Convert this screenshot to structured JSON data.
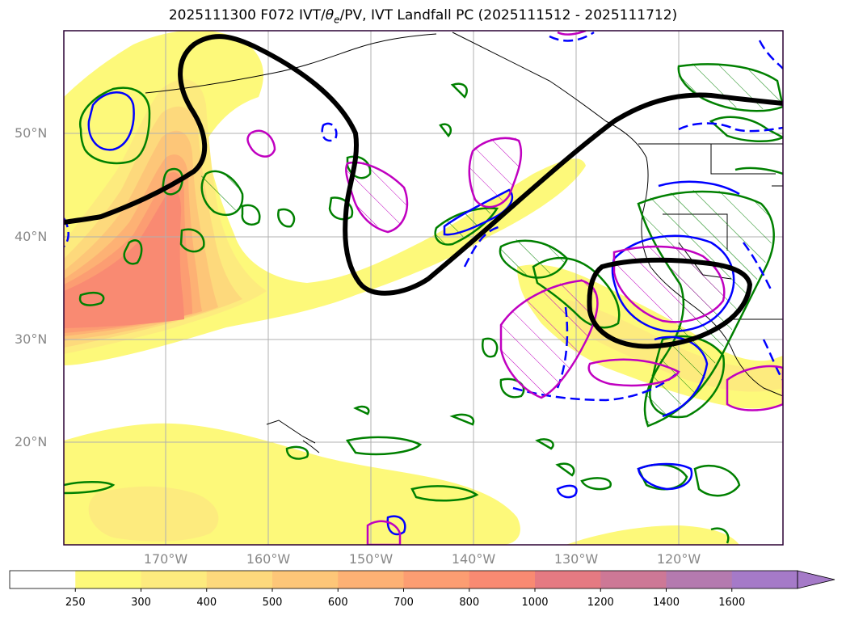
{
  "title": {
    "prefix": "2025111300 F072 IVT/",
    "theta_symbol": "θ",
    "theta_sub": "e",
    "suffix": "/PV, IVT Landfall PC (2025111512 - 2025111712)"
  },
  "map": {
    "projection": "PlateCarree",
    "extent": {
      "lon_min": -180,
      "lon_max": -109,
      "lat_min": 10,
      "lat_max": 60
    },
    "gridlines": true,
    "lat_labels": [
      "20°N",
      "30°N",
      "40°N",
      "50°N"
    ],
    "lon_labels": [
      "170°W",
      "160°W",
      "150°W",
      "140°W",
      "130°W",
      "120°W"
    ],
    "colors": {
      "geopotential_contour": "#000000",
      "theta_e_contour_solid": "#0000ff",
      "theta_e_contour_dashed": "#0000ff",
      "pv_contour": "#008000",
      "pc_contour": "#c000c0",
      "grid": "#b0b0b0"
    }
  },
  "colorbar": {
    "ticks": [
      "250",
      "300",
      "400",
      "500",
      "600",
      "700",
      "800",
      "1000",
      "1200",
      "1400",
      "1600"
    ],
    "colors": [
      "#ffffff",
      "#fdf97a",
      "#fdeb7e",
      "#fdd97c",
      "#fdc678",
      "#fdb174",
      "#fc9d72",
      "#f98a72",
      "#e57a82",
      "#cd7896",
      "#b47aaf",
      "#a57ac8"
    ],
    "extend": "max"
  }
}
